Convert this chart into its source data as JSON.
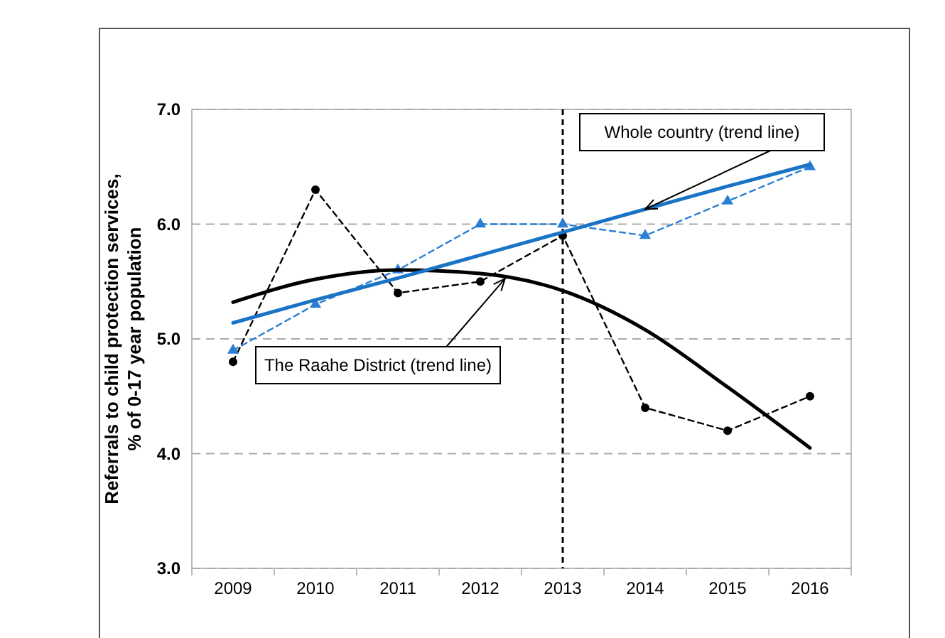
{
  "chart_data": {
    "type": "line",
    "ylabel": "Referrals to child protection services,\n% of 0-17 year population",
    "categories": [
      "2009",
      "2010",
      "2011",
      "2012",
      "2013",
      "2014",
      "2015",
      "2016"
    ],
    "series": [
      {
        "color": "#000000",
        "values": [
          4.8,
          6.3,
          5.4,
          5.5,
          5.9,
          4.4,
          4.2,
          4.5
        ],
        "marker": "circle",
        "line_style": "dashed"
      },
      {
        "color": "#2a7fd4",
        "values": [
          4.9,
          5.3,
          5.6,
          6.0,
          6.0,
          5.9,
          6.2,
          6.5
        ],
        "marker": "triangle",
        "line_style": "dashed"
      },
      {
        "name": "The Raahe District (trend line)",
        "color": "#000000",
        "values": [
          5.32,
          5.52,
          5.6,
          5.57,
          5.42,
          5.08,
          4.58,
          4.05
        ],
        "marker": "none",
        "line_style": "solid"
      },
      {
        "name": "Whole country (trend line)",
        "color": "#1a74c6",
        "values": [
          5.14,
          5.34,
          5.53,
          5.73,
          5.93,
          6.13,
          6.33,
          6.52
        ],
        "marker": "none",
        "line_style": "solid"
      }
    ],
    "ylim": [
      3,
      7
    ],
    "yticks": [
      {
        "value": 3,
        "label": "3.0"
      },
      {
        "value": 4,
        "label": "4.0"
      },
      {
        "value": 5,
        "label": "5.0"
      },
      {
        "value": 6,
        "label": "6.0"
      },
      {
        "value": 7,
        "label": "7.0"
      }
    ],
    "grid": "y",
    "ref_lines": [
      {
        "axis": "x",
        "value": "2013",
        "color": "#000000",
        "line_style": "dashed"
      }
    ]
  }
}
